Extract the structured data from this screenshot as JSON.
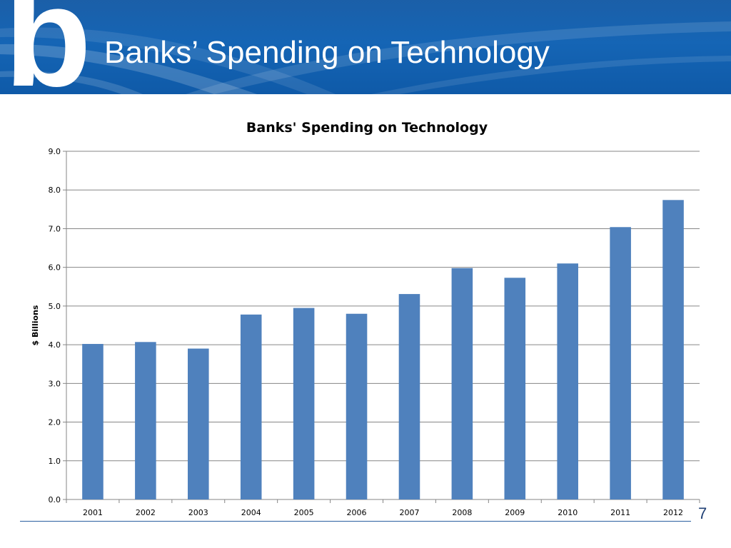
{
  "slide": {
    "logo_letter": "b",
    "title": "Banks’ Spending on Technology",
    "page_number": "7"
  },
  "colors": {
    "header_blue": "#1565b5",
    "bar_blue": "#4f81bd",
    "gridline": "#868686",
    "footer_line": "#2b5fa0"
  },
  "chart_data": {
    "type": "bar",
    "title": "Banks' Spending on Technology",
    "xlabel": "",
    "ylabel": "$ Billions",
    "categories": [
      "2001",
      "2002",
      "2003",
      "2004",
      "2005",
      "2006",
      "2007",
      "2008",
      "2009",
      "2010",
      "2011",
      "2012"
    ],
    "values": [
      4.02,
      4.07,
      3.9,
      4.78,
      4.95,
      4.8,
      5.31,
      5.98,
      5.73,
      6.1,
      7.04,
      7.74
    ],
    "ylim": [
      0,
      9
    ],
    "yticks": [
      "0.0",
      "1.0",
      "2.0",
      "3.0",
      "4.0",
      "5.0",
      "6.0",
      "7.0",
      "8.0",
      "9.0"
    ],
    "grid": true,
    "legend": "none"
  }
}
